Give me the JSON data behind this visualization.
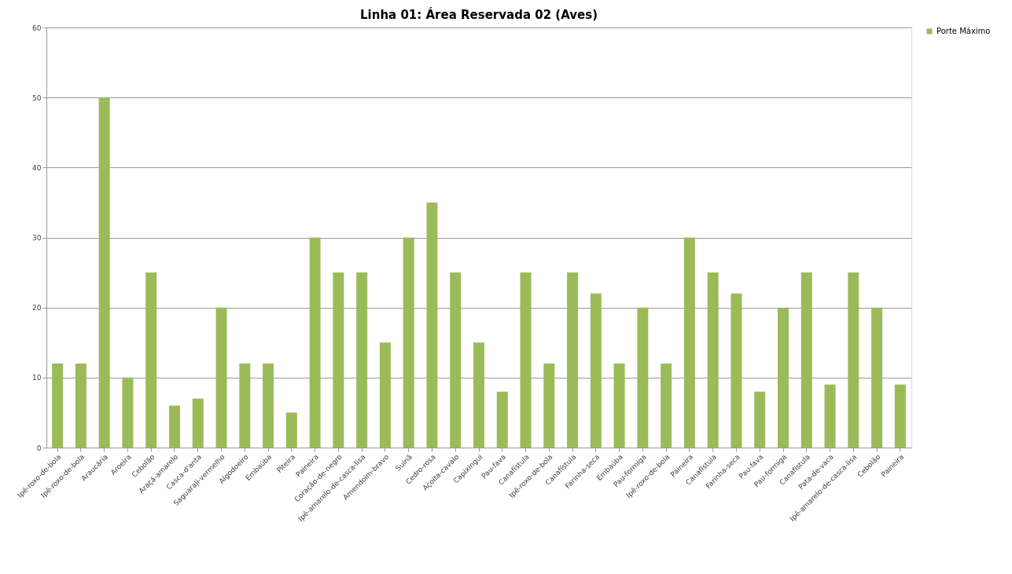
{
  "chart_data": {
    "type": "bar",
    "title": "Linha 01: Área Reservada 02 (Aves)",
    "categories": [
      "Ipê-roxo-de-bola",
      "Ipê-roxo-de-bola",
      "Araucária",
      "Aroeira",
      "Cebolão",
      "Araçá-amarelo",
      "Casca-d'anta",
      "Saguaraji-vermelho",
      "Algodoeiro",
      "Embaúba",
      "Piteira",
      "Paineira",
      "Coração-de-negro",
      "Ipê-amarelo-de-casca-lisa",
      "Amendoim-bravo",
      "Suinã",
      "Cedro-rosa",
      "Açoita-cavalo",
      "Capixingui",
      "Pau-fava",
      "Canafístula",
      "Ipê-roxo-de-bola",
      "Canafístula",
      "Farinha-seca",
      "Embaúba",
      "Pau-formiga",
      "Ipê-roxo-de-bola",
      "Paineira",
      "Canafístula",
      "Farinha-seca",
      "Pau-fava",
      "Pau-formiga",
      "Canafístula",
      "Pata-de-vaca",
      "Ipê-amarelo-de-casca-lisa",
      "Cebolão",
      "Paineira"
    ],
    "series": [
      {
        "name": "Porte Máximo",
        "color": "#9bbb59",
        "values": [
          12,
          12,
          50,
          10,
          25,
          6,
          7,
          20,
          12,
          12,
          5,
          30,
          25,
          25,
          15,
          30,
          35,
          25,
          15,
          8,
          25,
          12,
          25,
          22,
          12,
          20,
          12,
          30,
          25,
          22,
          8,
          20,
          25,
          9,
          25,
          20,
          9
        ]
      }
    ],
    "ylim": [
      0,
      60
    ],
    "yticks": [
      0,
      10,
      20,
      30,
      40,
      50,
      60
    ],
    "grid": "y",
    "legend": "right"
  }
}
